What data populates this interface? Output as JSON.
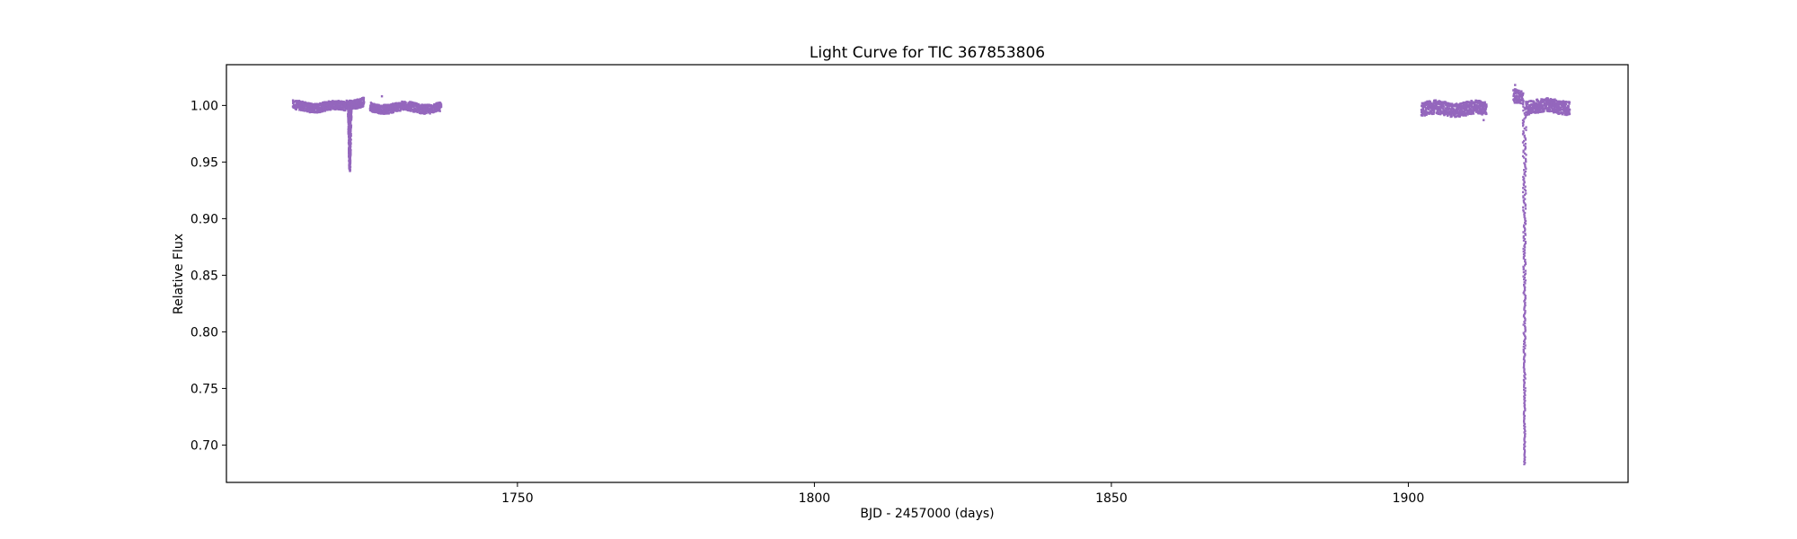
{
  "chart_data": {
    "type": "scatter",
    "title": "Light Curve for TIC 367853806",
    "xlabel": "BJD - 2457000 (days)",
    "ylabel": "Relative Flux",
    "xlim": [
      1701,
      1937
    ],
    "ylim": [
      0.667,
      1.036
    ],
    "x_ticks": [
      1750,
      1800,
      1850,
      1900
    ],
    "x_tick_labels": [
      "1750",
      "1800",
      "1850",
      "1900"
    ],
    "y_ticks": [
      0.7,
      0.75,
      0.8,
      0.85,
      0.9,
      0.95,
      1.0
    ],
    "y_tick_labels": [
      "0.70",
      "0.75",
      "0.80",
      "0.85",
      "0.90",
      "0.95",
      "1.00"
    ],
    "grid": false,
    "series": [
      {
        "color": "#9467bd",
        "segments": [
          {
            "x_start": 1712.0,
            "x_end": 1721.0,
            "y_center": 1.0,
            "y_spread": 0.004
          },
          {
            "x_start": 1721.0,
            "x_end": 1724.0,
            "y_center": 1.003,
            "y_spread": 0.004
          },
          {
            "x_start": 1725.0,
            "x_end": 1737.0,
            "y_center": 0.999,
            "y_spread": 0.004
          },
          {
            "x_start": 1902.0,
            "x_end": 1913.0,
            "y_center": 0.998,
            "y_spread": 0.006
          },
          {
            "x_start": 1917.5,
            "x_end": 1919.2,
            "y_center": 1.008,
            "y_spread": 0.006
          },
          {
            "x_start": 1919.6,
            "x_end": 1927.0,
            "y_center": 1.0,
            "y_spread": 0.006
          }
        ],
        "dips": [
          {
            "x_center": 1721.6,
            "half_width": 0.35,
            "y_min": 0.943
          },
          {
            "x_center": 1919.4,
            "half_width": 0.3,
            "y_min": 0.684
          }
        ],
        "outliers": [
          {
            "x": 1727.0,
            "y": 1.009
          },
          {
            "x": 1912.5,
            "y": 0.988
          },
          {
            "x": 1917.8,
            "y": 1.019
          }
        ]
      }
    ]
  }
}
